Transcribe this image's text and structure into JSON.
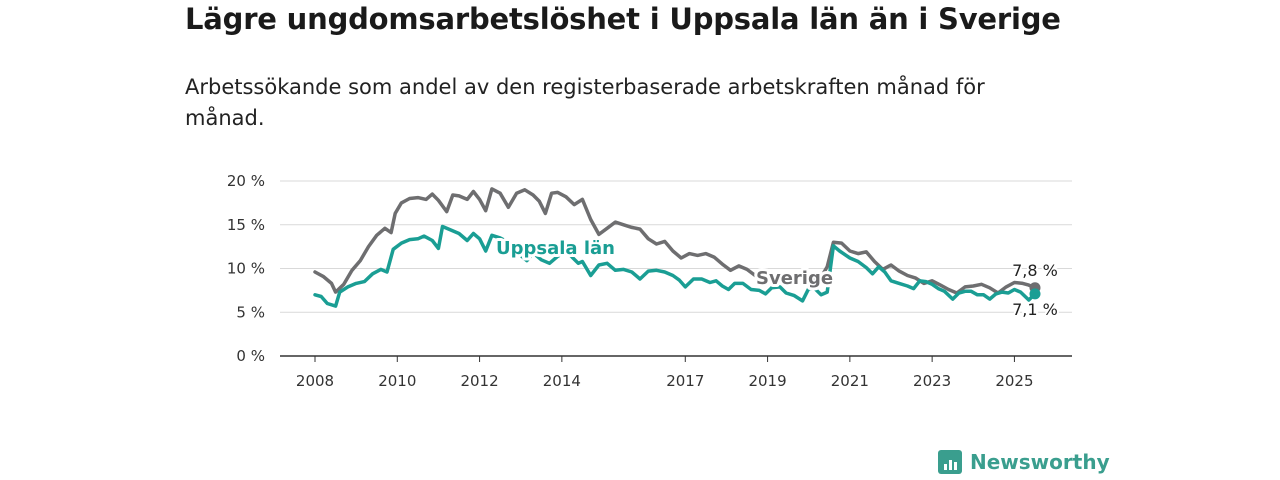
{
  "title": "Lägre ungdomsarbetslöshet i Uppsala län än i Sverige",
  "subtitle": "Arbetssökande som andel av den registerbaserade arbetskraften månad för månad.",
  "brand": {
    "name": "Newsworthy",
    "color": "#3a9e8e",
    "icon": "bar-chart-icon"
  },
  "chart_data": {
    "type": "line",
    "x_unit": "year (decimal)",
    "xlim": [
      2008,
      2025.5
    ],
    "ylim": [
      0,
      20
    ],
    "y_ticks": [
      0,
      5,
      10,
      15,
      20
    ],
    "y_tick_labels": [
      "0 %",
      "5 %",
      "10 %",
      "15 %",
      "20 %"
    ],
    "x_ticks": [
      2008,
      2010,
      2012,
      2014,
      2017,
      2019,
      2021,
      2023,
      2025
    ],
    "x_tick_labels": [
      "2008",
      "2010",
      "2012",
      "2014",
      "2017",
      "2019",
      "2021",
      "2023",
      "2025"
    ],
    "grid": "horizontal",
    "series": [
      {
        "name": "Sverige",
        "color": "#6e6e70",
        "end_label": "7,8 %",
        "points": [
          [
            2008.0,
            9.6
          ],
          [
            2008.2,
            9.1
          ],
          [
            2008.4,
            8.3
          ],
          [
            2008.5,
            7.3
          ],
          [
            2008.7,
            8.2
          ],
          [
            2008.9,
            9.8
          ],
          [
            2009.1,
            10.9
          ],
          [
            2009.3,
            12.5
          ],
          [
            2009.5,
            13.8
          ],
          [
            2009.7,
            14.6
          ],
          [
            2009.85,
            14.1
          ],
          [
            2009.95,
            16.3
          ],
          [
            2010.1,
            17.5
          ],
          [
            2010.3,
            18.0
          ],
          [
            2010.5,
            18.1
          ],
          [
            2010.7,
            17.9
          ],
          [
            2010.85,
            18.5
          ],
          [
            2011.0,
            17.8
          ],
          [
            2011.2,
            16.5
          ],
          [
            2011.35,
            18.4
          ],
          [
            2011.5,
            18.3
          ],
          [
            2011.7,
            17.9
          ],
          [
            2011.85,
            18.8
          ],
          [
            2012.0,
            17.9
          ],
          [
            2012.15,
            16.6
          ],
          [
            2012.3,
            19.1
          ],
          [
            2012.5,
            18.6
          ],
          [
            2012.7,
            17.0
          ],
          [
            2012.9,
            18.6
          ],
          [
            2013.1,
            19.0
          ],
          [
            2013.3,
            18.4
          ],
          [
            2013.45,
            17.7
          ],
          [
            2013.6,
            16.3
          ],
          [
            2013.75,
            18.6
          ],
          [
            2013.9,
            18.7
          ],
          [
            2014.1,
            18.2
          ],
          [
            2014.3,
            17.3
          ],
          [
            2014.5,
            17.9
          ],
          [
            2014.7,
            15.6
          ],
          [
            2014.9,
            13.9
          ],
          [
            2015.1,
            14.6
          ],
          [
            2015.3,
            15.3
          ],
          [
            2015.5,
            15.0
          ],
          [
            2015.7,
            14.7
          ],
          [
            2015.9,
            14.5
          ],
          [
            2016.1,
            13.4
          ],
          [
            2016.3,
            12.8
          ],
          [
            2016.5,
            13.1
          ],
          [
            2016.7,
            12.0
          ],
          [
            2016.9,
            11.2
          ],
          [
            2017.1,
            11.7
          ],
          [
            2017.3,
            11.5
          ],
          [
            2017.5,
            11.7
          ],
          [
            2017.7,
            11.3
          ],
          [
            2017.9,
            10.5
          ],
          [
            2018.1,
            9.8
          ],
          [
            2018.3,
            10.3
          ],
          [
            2018.5,
            9.9
          ],
          [
            2018.7,
            9.2
          ],
          [
            2018.9,
            8.6
          ],
          [
            2019.1,
            9.0
          ],
          [
            2019.3,
            9.4
          ],
          [
            2019.5,
            9.0
          ],
          [
            2019.7,
            8.5
          ],
          [
            2019.9,
            8.2
          ],
          [
            2020.1,
            8.6
          ],
          [
            2020.3,
            9.0
          ],
          [
            2020.45,
            10.2
          ],
          [
            2020.6,
            13.0
          ],
          [
            2020.8,
            12.9
          ],
          [
            2021.0,
            12.0
          ],
          [
            2021.2,
            11.7
          ],
          [
            2021.4,
            11.9
          ],
          [
            2021.6,
            10.8
          ],
          [
            2021.8,
            9.9
          ],
          [
            2022.0,
            10.4
          ],
          [
            2022.2,
            9.7
          ],
          [
            2022.4,
            9.2
          ],
          [
            2022.6,
            8.9
          ],
          [
            2022.8,
            8.3
          ],
          [
            2023.0,
            8.6
          ],
          [
            2023.2,
            8.1
          ],
          [
            2023.4,
            7.6
          ],
          [
            2023.6,
            7.2
          ],
          [
            2023.8,
            7.9
          ],
          [
            2024.0,
            8.0
          ],
          [
            2024.2,
            8.2
          ],
          [
            2024.4,
            7.8
          ],
          [
            2024.6,
            7.2
          ],
          [
            2024.8,
            7.9
          ],
          [
            2025.0,
            8.4
          ],
          [
            2025.2,
            8.3
          ],
          [
            2025.35,
            8.1
          ],
          [
            2025.5,
            7.8
          ]
        ]
      },
      {
        "name": "Uppsala län",
        "color": "#1a9e94",
        "end_label": "7,1 %",
        "points": [
          [
            2008.0,
            7.0
          ],
          [
            2008.15,
            6.8
          ],
          [
            2008.3,
            6.0
          ],
          [
            2008.5,
            5.7
          ],
          [
            2008.6,
            7.3
          ],
          [
            2008.8,
            7.9
          ],
          [
            2009.0,
            8.3
          ],
          [
            2009.2,
            8.5
          ],
          [
            2009.4,
            9.4
          ],
          [
            2009.6,
            9.9
          ],
          [
            2009.75,
            9.6
          ],
          [
            2009.9,
            12.2
          ],
          [
            2010.1,
            12.9
          ],
          [
            2010.3,
            13.3
          ],
          [
            2010.5,
            13.4
          ],
          [
            2010.65,
            13.7
          ],
          [
            2010.85,
            13.2
          ],
          [
            2011.0,
            12.3
          ],
          [
            2011.1,
            14.8
          ],
          [
            2011.3,
            14.4
          ],
          [
            2011.5,
            14.0
          ],
          [
            2011.7,
            13.2
          ],
          [
            2011.85,
            14.0
          ],
          [
            2012.0,
            13.4
          ],
          [
            2012.15,
            12.0
          ],
          [
            2012.3,
            13.8
          ],
          [
            2012.5,
            13.5
          ],
          [
            2012.7,
            13.0
          ],
          [
            2012.85,
            12.0
          ],
          [
            2013.0,
            11.5
          ],
          [
            2013.15,
            10.9
          ],
          [
            2013.3,
            11.8
          ],
          [
            2013.5,
            11.0
          ],
          [
            2013.7,
            10.6
          ],
          [
            2013.9,
            11.4
          ],
          [
            2014.1,
            11.9
          ],
          [
            2014.25,
            11.3
          ],
          [
            2014.4,
            10.6
          ],
          [
            2014.5,
            10.8
          ],
          [
            2014.7,
            9.2
          ],
          [
            2014.9,
            10.4
          ],
          [
            2015.1,
            10.6
          ],
          [
            2015.3,
            9.8
          ],
          [
            2015.5,
            9.9
          ],
          [
            2015.7,
            9.6
          ],
          [
            2015.9,
            8.8
          ],
          [
            2016.1,
            9.7
          ],
          [
            2016.3,
            9.8
          ],
          [
            2016.5,
            9.6
          ],
          [
            2016.7,
            9.2
          ],
          [
            2016.85,
            8.7
          ],
          [
            2017.0,
            7.9
          ],
          [
            2017.2,
            8.8
          ],
          [
            2017.4,
            8.8
          ],
          [
            2017.6,
            8.4
          ],
          [
            2017.75,
            8.6
          ],
          [
            2017.9,
            8.0
          ],
          [
            2018.05,
            7.6
          ],
          [
            2018.2,
            8.3
          ],
          [
            2018.4,
            8.3
          ],
          [
            2018.6,
            7.6
          ],
          [
            2018.8,
            7.5
          ],
          [
            2018.95,
            7.1
          ],
          [
            2019.1,
            7.8
          ],
          [
            2019.3,
            7.9
          ],
          [
            2019.45,
            7.2
          ],
          [
            2019.65,
            6.9
          ],
          [
            2019.85,
            6.3
          ],
          [
            2020.0,
            7.7
          ],
          [
            2020.15,
            7.7
          ],
          [
            2020.3,
            7.0
          ],
          [
            2020.45,
            7.3
          ],
          [
            2020.6,
            12.6
          ],
          [
            2020.75,
            12.0
          ],
          [
            2021.0,
            11.2
          ],
          [
            2021.2,
            10.8
          ],
          [
            2021.4,
            10.1
          ],
          [
            2021.55,
            9.4
          ],
          [
            2021.7,
            10.2
          ],
          [
            2021.85,
            9.6
          ],
          [
            2022.0,
            8.6
          ],
          [
            2022.2,
            8.3
          ],
          [
            2022.4,
            8.0
          ],
          [
            2022.55,
            7.7
          ],
          [
            2022.7,
            8.6
          ],
          [
            2022.85,
            8.5
          ],
          [
            2023.0,
            8.2
          ],
          [
            2023.15,
            7.7
          ],
          [
            2023.3,
            7.4
          ],
          [
            2023.5,
            6.5
          ],
          [
            2023.65,
            7.2
          ],
          [
            2023.8,
            7.4
          ],
          [
            2023.95,
            7.4
          ],
          [
            2024.1,
            7.0
          ],
          [
            2024.25,
            7.0
          ],
          [
            2024.4,
            6.5
          ],
          [
            2024.55,
            7.1
          ],
          [
            2024.7,
            7.3
          ],
          [
            2024.85,
            7.2
          ],
          [
            2025.0,
            7.6
          ],
          [
            2025.15,
            7.3
          ],
          [
            2025.35,
            6.4
          ],
          [
            2025.5,
            7.1
          ]
        ]
      }
    ]
  }
}
